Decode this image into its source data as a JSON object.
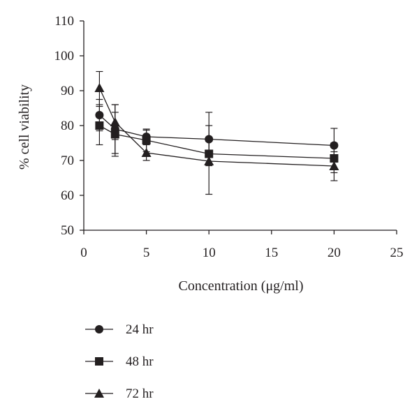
{
  "chart_data": {
    "type": "line",
    "xlabel": "Concentration (μg/ml)",
    "ylabel": "% cell viability",
    "xlim": [
      0,
      25
    ],
    "ylim": [
      50,
      110
    ],
    "x_ticks": [
      "0",
      "5",
      "10",
      "15",
      "20",
      "25"
    ],
    "y_ticks": [
      "50",
      "60",
      "70",
      "80",
      "90",
      "100",
      "110"
    ],
    "grid": false,
    "legend_position": "bottom-left",
    "x": [
      1.25,
      2.5,
      5,
      10,
      20
    ],
    "series": [
      {
        "name": "24 hr",
        "marker": "circle",
        "values": [
          83.0,
          79.0,
          76.8,
          76.1,
          74.3
        ],
        "error_low": [
          78.5,
          72.0,
          75.0,
          72.0,
          69.5
        ],
        "error_high": [
          87.5,
          86.0,
          78.7,
          80.0,
          79.2
        ]
      },
      {
        "name": "48 hr",
        "marker": "square",
        "values": [
          80.0,
          77.5,
          75.8,
          71.9,
          70.6
        ],
        "error_low": [
          74.5,
          71.2,
          72.5,
          68.5,
          66.5
        ],
        "error_high": [
          85.5,
          83.8,
          79.0,
          75.5,
          75.0
        ]
      },
      {
        "name": "72 hr",
        "marker": "triangle",
        "values": [
          90.8,
          81.0,
          72.2,
          69.8,
          68.4
        ],
        "error_low": [
          86.0,
          76.0,
          70.0,
          60.3,
          64.2
        ],
        "error_high": [
          95.5,
          86.0,
          74.5,
          83.8,
          72.5
        ]
      }
    ]
  }
}
